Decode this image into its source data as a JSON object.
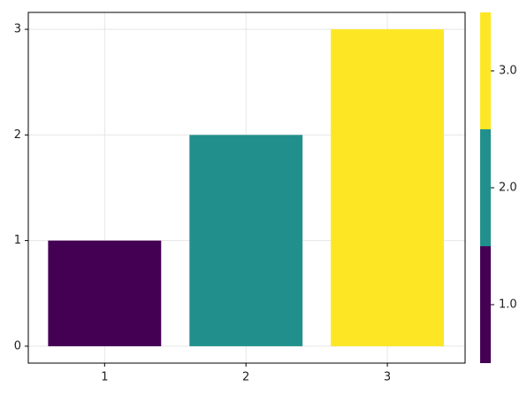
{
  "chart_data": {
    "type": "bar",
    "x": [
      1,
      2,
      3
    ],
    "values": [
      1,
      2,
      3
    ],
    "colors": [
      "#440154",
      "#21908d",
      "#fde725"
    ],
    "bar_width": 0.8,
    "xlim": [
      0.46,
      3.55
    ],
    "xticks": [
      1,
      2,
      3
    ],
    "ylim": [
      -0.16,
      3.16
    ],
    "yticks": [
      0,
      1,
      2,
      3
    ],
    "grid": true,
    "colorbar": {
      "limits": [
        0.5,
        3.5
      ],
      "ticks": [
        {
          "value": 1,
          "label": "1.0"
        },
        {
          "value": 2,
          "label": "2.0"
        },
        {
          "value": 3,
          "label": "3.0"
        }
      ],
      "colors": [
        "#440154",
        "#21908d",
        "#fde725"
      ]
    }
  }
}
